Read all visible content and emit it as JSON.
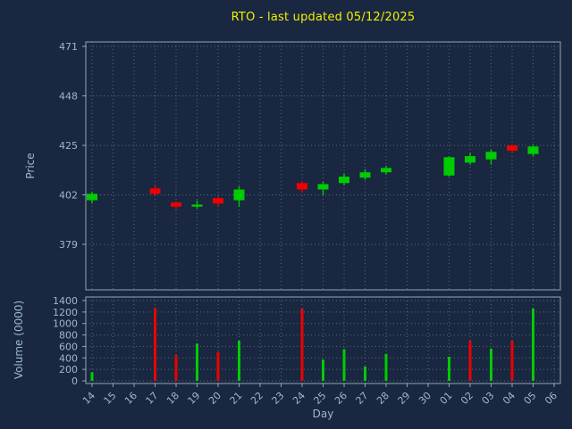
{
  "colors": {
    "background": "#192741",
    "title": "#f0f000",
    "axis_text": "#9fb6cf",
    "grid": "#8fa3b8",
    "border": "#93a4b4",
    "up": "#00cc00",
    "down": "#ee0000"
  },
  "chart_data": {
    "type": "candlestick",
    "title": "RTO - last updated 05/12/2025",
    "xlabel": "Day",
    "grid": true,
    "price_axis": {
      "label": "Price",
      "ticks": [
        379,
        402,
        425,
        448,
        471
      ],
      "range": [
        357,
        473
      ]
    },
    "volume_axis": {
      "label": "Volume (0000)",
      "ticks": [
        0,
        200,
        400,
        600,
        800,
        1000,
        1200,
        1400
      ],
      "range": [
        0,
        1400
      ]
    },
    "x_ticklabels": [
      "14",
      "15",
      "16",
      "17",
      "18",
      "19",
      "20",
      "21",
      "22",
      "23",
      "24",
      "25",
      "26",
      "27",
      "28",
      "29",
      "30",
      "01",
      "02",
      "03",
      "04",
      "05",
      "06"
    ],
    "candles": [
      {
        "label": "14",
        "open": 399.5,
        "high": 403.5,
        "low": 398.0,
        "close": 402.5,
        "dir": "up",
        "volume": 150,
        "vol_dir": "up"
      },
      {
        "label": "17",
        "open": 405.0,
        "high": 406.5,
        "low": 401.5,
        "close": 402.5,
        "dir": "down",
        "volume": 1270,
        "vol_dir": "down"
      },
      {
        "label": "18",
        "open": 398.5,
        "high": 399.0,
        "low": 395.5,
        "close": 396.5,
        "dir": "down",
        "volume": 450,
        "vol_dir": "down"
      },
      {
        "label": "19",
        "open": 396.5,
        "high": 399.5,
        "low": 395.5,
        "close": 397.5,
        "dir": "up",
        "volume": 650,
        "vol_dir": "up"
      },
      {
        "label": "20",
        "open": 400.5,
        "high": 401.0,
        "low": 396.5,
        "close": 398.0,
        "dir": "down",
        "volume": 500,
        "vol_dir": "down"
      },
      {
        "label": "21",
        "open": 399.5,
        "high": 406.0,
        "low": 396.5,
        "close": 404.5,
        "dir": "up",
        "volume": 700,
        "vol_dir": "up"
      },
      {
        "label": "24",
        "open": 407.5,
        "high": 408.5,
        "low": 403.0,
        "close": 404.5,
        "dir": "down",
        "volume": 1260,
        "vol_dir": "down"
      },
      {
        "label": "25",
        "open": 404.5,
        "high": 408.0,
        "low": 402.0,
        "close": 407.0,
        "dir": "up",
        "volume": 370,
        "vol_dir": "up"
      },
      {
        "label": "26",
        "open": 407.5,
        "high": 412.0,
        "low": 406.5,
        "close": 410.5,
        "dir": "up",
        "volume": 550,
        "vol_dir": "up"
      },
      {
        "label": "27",
        "open": 410.0,
        "high": 414.0,
        "low": 409.0,
        "close": 412.5,
        "dir": "up",
        "volume": 250,
        "vol_dir": "up"
      },
      {
        "label": "28",
        "open": 412.5,
        "high": 415.5,
        "low": 411.5,
        "close": 414.5,
        "dir": "up",
        "volume": 470,
        "vol_dir": "up"
      },
      {
        "label": "01",
        "open": 411.0,
        "high": 420.0,
        "low": 410.5,
        "close": 419.5,
        "dir": "up",
        "volume": 420,
        "vol_dir": "up"
      },
      {
        "label": "02",
        "open": 417.0,
        "high": 421.5,
        "low": 416.0,
        "close": 420.0,
        "dir": "up",
        "volume": 700,
        "vol_dir": "down"
      },
      {
        "label": "03",
        "open": 418.5,
        "high": 423.0,
        "low": 416.0,
        "close": 422.0,
        "dir": "up",
        "volume": 560,
        "vol_dir": "up"
      },
      {
        "label": "04",
        "open": 425.0,
        "high": 425.5,
        "low": 421.5,
        "close": 422.5,
        "dir": "down",
        "volume": 700,
        "vol_dir": "down"
      },
      {
        "label": "05",
        "open": 421.0,
        "high": 425.5,
        "low": 420.0,
        "close": 424.5,
        "dir": "up",
        "volume": 1260,
        "vol_dir": "up"
      }
    ]
  }
}
